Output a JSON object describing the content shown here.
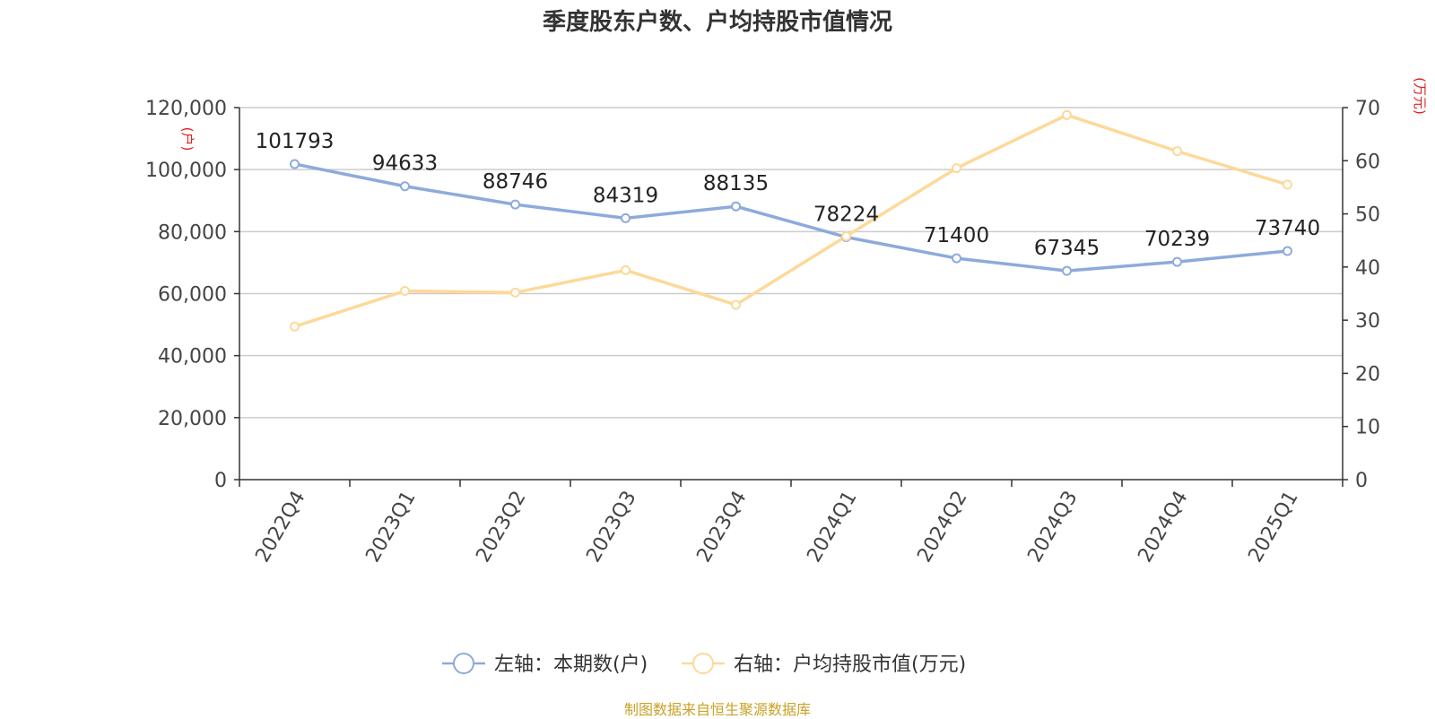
{
  "chart_data": {
    "type": "line",
    "title": "季度股东户数、户均持股市值情况",
    "source": "制图数据来自恒生聚源数据库",
    "categories": [
      "2022Q4",
      "2023Q1",
      "2023Q2",
      "2023Q3",
      "2023Q4",
      "2024Q1",
      "2024Q2",
      "2024Q3",
      "2024Q4",
      "2025Q1"
    ],
    "left_axis": {
      "unit_label": "(户)",
      "range": [
        0,
        120000
      ],
      "ticks": [
        0,
        20000,
        40000,
        60000,
        80000,
        100000,
        120000
      ],
      "tick_labels": [
        "0",
        "20,000",
        "40,000",
        "60,000",
        "80,000",
        "100,000",
        "120,000"
      ]
    },
    "right_axis": {
      "unit_label": "(万元)",
      "range": [
        0,
        70
      ],
      "ticks": [
        0,
        10,
        20,
        30,
        40,
        50,
        60,
        70
      ],
      "tick_labels": [
        "0",
        "10",
        "20",
        "30",
        "40",
        "50",
        "60",
        "70"
      ]
    },
    "grid": true,
    "legend_position": "bottom-center",
    "series": [
      {
        "name": "左轴：本期数(户)",
        "axis": "left",
        "color": "#8eaadb",
        "values": [
          101793,
          94633,
          88746,
          84319,
          88135,
          78224,
          71400,
          67345,
          70239,
          73740
        ],
        "data_labels": [
          "101793",
          "94633",
          "88746",
          "84319",
          "88135",
          "78224",
          "71400",
          "67345",
          "70239",
          "73740"
        ]
      },
      {
        "name": "右轴：户均持股市值(万元)",
        "axis": "right",
        "color": "#fdd999",
        "values": [
          28.8,
          35.5,
          35.2,
          39.4,
          32.9,
          45.8,
          58.6,
          68.6,
          61.8,
          55.5
        ]
      }
    ],
    "colors": {
      "axis_label_accent": "#e02020",
      "grid": "#cccccc",
      "axis": "#333333",
      "tick_text": "#444444"
    }
  }
}
